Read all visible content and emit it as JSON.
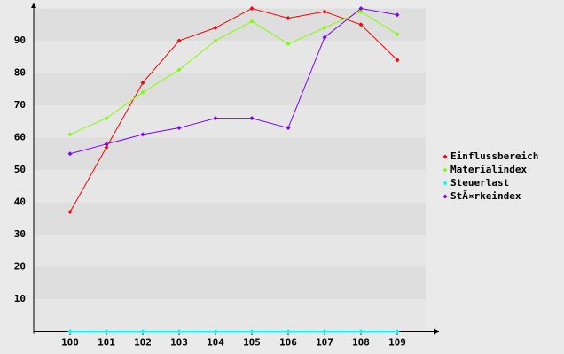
{
  "chart_data": {
    "type": "line",
    "categories": [
      "100",
      "101",
      "102",
      "103",
      "104",
      "105",
      "106",
      "107",
      "108",
      "109"
    ],
    "series": [
      {
        "name": "Einflussbereich",
        "color": "#ff0000",
        "values": [
          37,
          57,
          77,
          90,
          94,
          100,
          97,
          99,
          95,
          84
        ]
      },
      {
        "name": "Materialindex",
        "color": "#80ff00",
        "values": [
          61,
          66,
          74,
          81,
          90,
          96,
          89,
          94,
          99,
          92
        ]
      },
      {
        "name": "Steuerlast",
        "color": "#00ffff",
        "values": [
          0,
          0,
          0,
          0,
          0,
          0,
          0,
          0,
          0,
          0
        ]
      },
      {
        "name": "StÃ¤rkeindex",
        "color": "#8000ff",
        "values": [
          55,
          58,
          61,
          63,
          66,
          66,
          63,
          91,
          100,
          98
        ]
      }
    ],
    "ylim": [
      0,
      100
    ],
    "yticks": [
      10,
      20,
      30,
      40,
      50,
      60,
      70,
      80,
      90
    ],
    "grid": true,
    "legend": "right"
  }
}
